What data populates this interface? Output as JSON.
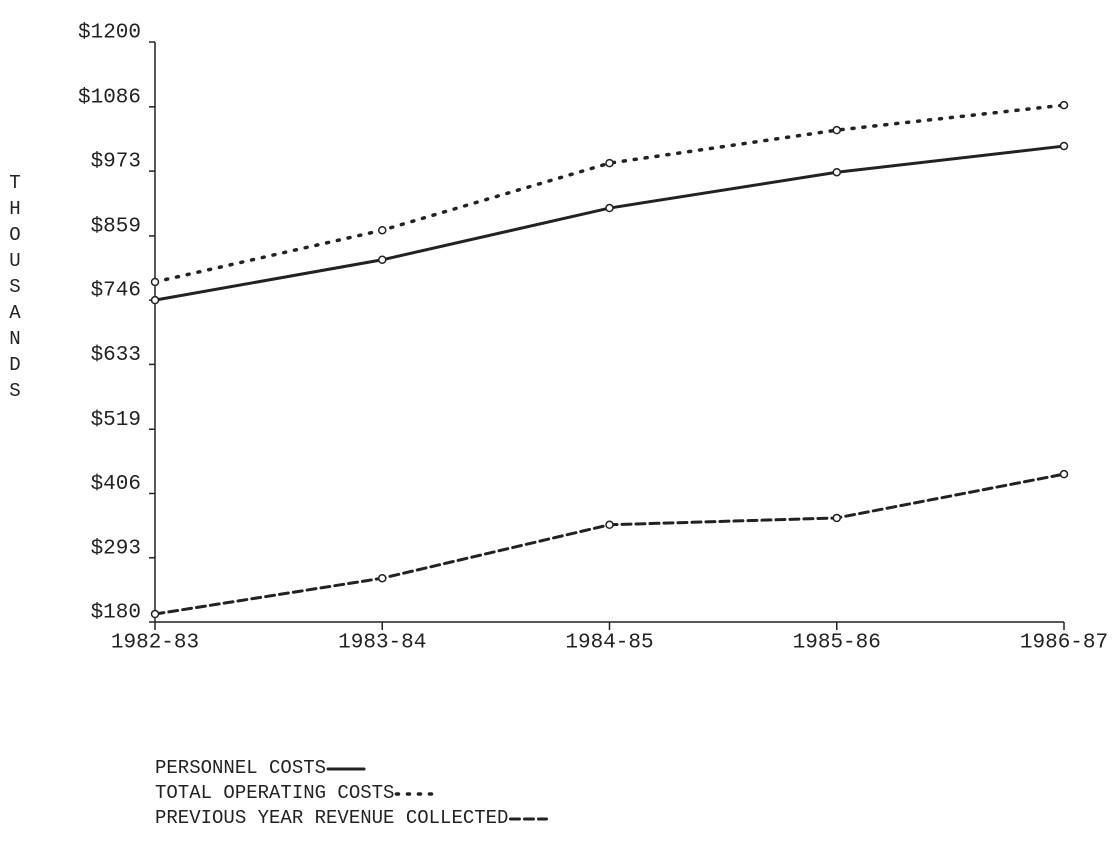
{
  "chart_data": {
    "type": "line",
    "y_label": "THOUSANDS",
    "categories": [
      "1982-83",
      "1983-84",
      "1984-85",
      "1985-86",
      "1986-87"
    ],
    "series": [
      {
        "name": "PERSONNEL COSTS",
        "color": "#222222",
        "line_style": "solid",
        "values": [
          746,
          817,
          908,
          971,
          1017
        ]
      },
      {
        "name": "TOTAL OPERATING COSTS",
        "color": "#222222",
        "line_style": "dotted",
        "values": [
          778,
          869,
          987,
          1045,
          1089
        ]
      },
      {
        "name": "PREVIOUS YEAR REVENUE COLLECTED",
        "color": "#222222",
        "line_style": "dashed",
        "values": [
          194,
          257,
          351,
          363,
          440
        ]
      }
    ],
    "ylim": [
      180,
      1200
    ],
    "yticks": [
      {
        "value": 180,
        "label": "$180"
      },
      {
        "value": 293,
        "label": "$293"
      },
      {
        "value": 406,
        "label": "$406"
      },
      {
        "value": 519,
        "label": "$519"
      },
      {
        "value": 633,
        "label": "$633"
      },
      {
        "value": 746,
        "label": "$746"
      },
      {
        "value": 859,
        "label": "$859"
      },
      {
        "value": 973,
        "label": "$973"
      },
      {
        "value": 1086,
        "label": "$1086"
      },
      {
        "value": 1200,
        "label": "$1200"
      }
    ]
  }
}
